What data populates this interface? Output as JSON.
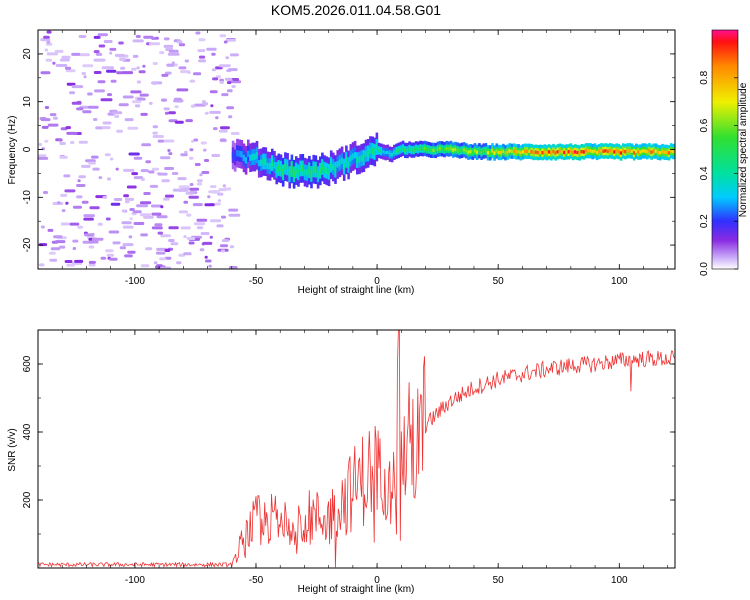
{
  "title": "KOM5.2026.011.04.58.G01",
  "chart_data": [
    {
      "type": "heatmap",
      "xlabel": "Height of straight line (km)",
      "ylabel": "Frequency (Hz)",
      "xlim": [
        -140,
        123
      ],
      "ylim": [
        -25,
        25
      ],
      "xticks": [
        -100,
        -50,
        0,
        50,
        100
      ],
      "yticks": [
        -20,
        -10,
        0,
        10,
        20
      ],
      "colorbar": {
        "label": "Normalized spectral amplitude",
        "range": [
          0,
          1
        ],
        "ticks": [
          0.0,
          0.2,
          0.4,
          0.6,
          0.8
        ],
        "tick_labels": [
          "0.0",
          "0.2",
          "0.4",
          "0.6",
          "0.8"
        ]
      },
      "trace": {
        "x": [
          -60,
          -55,
          -50,
          -45,
          -40,
          -35,
          -30,
          -25,
          -20,
          -15,
          -10,
          -5,
          0,
          5,
          10,
          20,
          30,
          40,
          50,
          60,
          70,
          80,
          90,
          100,
          110,
          123
        ],
        "freq": [
          -1,
          -1.5,
          -2,
          -3,
          -4,
          -4.5,
          -4.5,
          -4.5,
          -4,
          -3,
          -2,
          -1,
          0,
          -1,
          0,
          0,
          0,
          -0.5,
          -0.5,
          -0.5,
          -0.5,
          -0.5,
          -0.5,
          -0.5,
          -0.5,
          -0.5
        ],
        "amplitude": [
          0.2,
          0.3,
          0.35,
          0.4,
          0.45,
          0.5,
          0.45,
          0.45,
          0.4,
          0.4,
          0.35,
          0.4,
          0.45,
          0.35,
          0.5,
          0.55,
          0.6,
          0.65,
          0.7,
          0.8,
          0.85,
          0.9,
          0.85,
          0.9,
          0.85,
          0.9
        ]
      },
      "noise_region_xlim": [
        -140,
        -60
      ]
    },
    {
      "type": "line",
      "xlabel": "Height of straight line (km)",
      "ylabel": "SNR (v/v)",
      "xlim": [
        -140,
        123
      ],
      "ylim": [
        0,
        700
      ],
      "xticks": [
        -100,
        -50,
        0,
        50,
        100
      ],
      "yticks": [
        200,
        400,
        600
      ],
      "color": "#ee3333",
      "envelope": {
        "x": [
          -140,
          -60,
          -55,
          -50,
          -40,
          -30,
          -20,
          -15,
          -10,
          -5,
          0,
          5,
          8,
          9,
          10,
          15,
          20,
          30,
          40,
          50,
          60,
          70,
          80,
          90,
          100,
          110,
          123
        ],
        "y": [
          10,
          10,
          90,
          140,
          145,
          150,
          150,
          190,
          230,
          270,
          290,
          320,
          380,
          560,
          320,
          380,
          420,
          490,
          530,
          555,
          570,
          585,
          595,
          600,
          610,
          615,
          615
        ]
      },
      "spikes": [
        {
          "x": 9,
          "y": 700
        },
        {
          "x": 9.5,
          "y": 80
        },
        {
          "x": -17,
          "y": 0
        },
        {
          "x": 105,
          "y": 520
        }
      ]
    }
  ]
}
